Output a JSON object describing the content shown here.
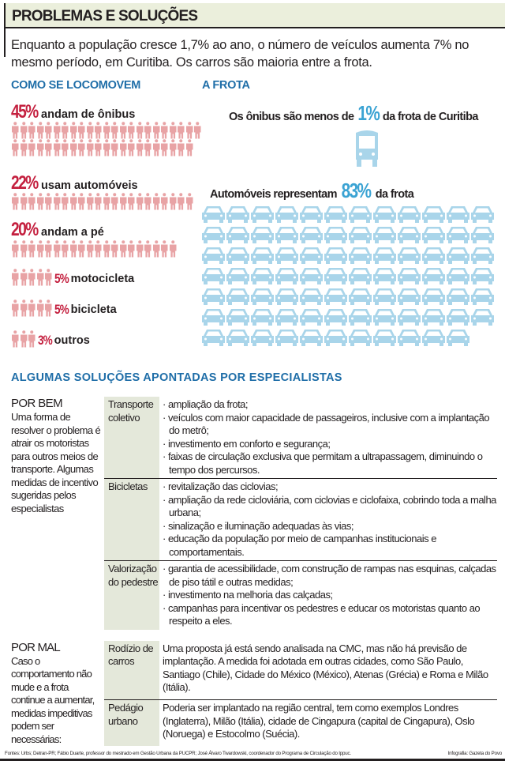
{
  "header": {
    "title": "PROBLEMAS E SOLUÇÕES"
  },
  "intro": "Enquanto a população cresce 1,7% ao ano, o número de veículos aumenta 7% no mesmo período, em Curitiba. Os carros são maioria entre a frota.",
  "locomotion": {
    "title": "COMO SE LOCOMOVEM",
    "person_color": "#e8a3a5",
    "pct_color": "#c4203f",
    "stats": [
      {
        "pct": "45%",
        "label": "andam de ônibus",
        "count": 45
      },
      {
        "pct": "22%",
        "label": "usam automóveis",
        "count": 22
      },
      {
        "pct": "20%",
        "label": "andam a pé",
        "count": 20
      },
      {
        "pct": "5%",
        "label": "motocicleta",
        "count": 5
      },
      {
        "pct": "5%",
        "label": "bicicleta",
        "count": 5
      },
      {
        "pct": "3%",
        "label": "outros",
        "count": 3
      }
    ]
  },
  "fleet": {
    "title": "A FROTA",
    "icon_color": "#a9d5ea",
    "pct_color": "#3ba3d3",
    "bus_pre": "Os ônibus são menos de",
    "bus_pct": "1%",
    "bus_post": "da frota de Curitiba",
    "bus_count": 1,
    "car_pre": "Automóveis representam",
    "car_pct": "83%",
    "car_post": "da frota",
    "car_count": 83
  },
  "solutions": {
    "title": "ALGUMAS SOLUÇÕES APONTADAS POR ESPECIALISTAS",
    "good": {
      "title": "POR BEM",
      "text": "Uma forma de resolver o problema é atrair os motoristas para outros meios de transporte. Algumas medidas de incentivo sugeridas pelos especialistas",
      "rows": [
        {
          "category": "Transporte coletivo",
          "items": [
            "ampliação da frota;",
            "veículos com maior capacidade de passageiros, inclusive com a implantação do metrô;",
            "investimento em conforto e segurança;",
            "faixas de circulação exclusiva que permitam a ultrapassagem, diminuindo o tempo dos percursos."
          ]
        },
        {
          "category": "Bicicletas",
          "items": [
            "revitalização das ciclovias;",
            "ampliação da rede cicloviária, com ciclovias e ciclofaixa, cobrindo toda a malha urbana;",
            "sinalização e iluminação adequadas às vias;",
            "educação da população por meio de campanhas institucionais e comportamentais."
          ]
        },
        {
          "category": "Valorização do pedestre",
          "items": [
            "garantia de acessibilidade, com construção de rampas nas esquinas, calçadas de piso tátil e outras medidas;",
            "investimento na melhoria das calçadas;",
            "campanhas para incentivar os pedestres e educar os motoristas quanto ao respeito a eles."
          ]
        }
      ]
    },
    "bad": {
      "title": "POR MAL",
      "text": "Caso o comportamento não mude e a frota continue a aumentar, medidas impeditivas podem ser necessárias:",
      "rows": [
        {
          "category": "Rodízio de carros",
          "text": "Uma proposta já está sendo analisada na CMC, mas não há previsão de implantação. A medida foi adotada em outras cidades, como São Paulo, Santiago (Chile), Cidade do México (México), Atenas (Grécia) e Roma e Milão (Itália)."
        },
        {
          "category": "Pedágio urbano",
          "text": "Poderia ser implantado na região central, tem como exemplos Londres (Inglaterra), Milão (Itália), cidade de Cingapura (capital de Cingapura), Oslo (Noruega) e Estocolmo (Suécia)."
        }
      ]
    }
  },
  "footer": {
    "sources": "Fontes: Urbs; Detran-PR; Fábio Duarte, professor do mestrado em Gestão Urbana da PUCPR; José Álvaro Twardowski, coordenador do Programa de Circulação do Ippuc.",
    "credit": "Infografia: Gazeta do Povo"
  }
}
